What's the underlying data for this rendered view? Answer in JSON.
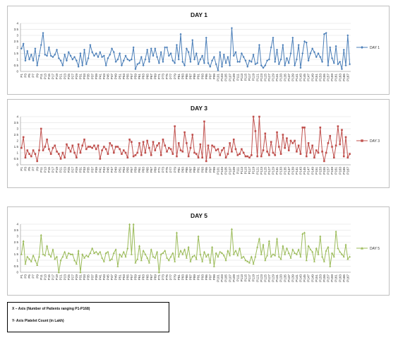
{
  "notes": {
    "x_axis": "X – Axis (Number of Patients ranging P1-P168)",
    "y_axis": "Y- Axis Platelet Count (in Lakh)"
  },
  "chart_data": [
    {
      "type": "line",
      "title": "DAY 1",
      "xlabel": "",
      "ylabel": "",
      "ylim": [
        0,
        4
      ],
      "yticks": [
        0,
        0.5,
        1,
        1.5,
        2,
        2.5,
        3,
        3.5,
        4
      ],
      "grid": true,
      "legend": "right",
      "color": "#4a7eb8",
      "marker": "diamond",
      "x_tick_every": 2,
      "n_points": 168,
      "series": [
        {
          "name": "DAY 1",
          "values": [
            1.9,
            2.3,
            0.9,
            1.7,
            1.0,
            1.4,
            0.9,
            1.9,
            0.5,
            1.3,
            2.2,
            3.2,
            1.4,
            1.3,
            2.0,
            1.3,
            1.2,
            1.4,
            1.8,
            1.1,
            0.9,
            0.5,
            1.4,
            0.9,
            1.6,
            1.3,
            1.0,
            1.2,
            0.9,
            0.4,
            1.5,
            0.5,
            1.8,
            0.6,
            1.1,
            2.2,
            1.6,
            1.3,
            1.5,
            1.2,
            1.6,
            1.2,
            1.3,
            0.5,
            1.1,
            1.4,
            1.9,
            1.6,
            0.8,
            1.0,
            1.5,
            0.5,
            0.9,
            1.3,
            1.0,
            0.9,
            1.0,
            2.0,
            0.2,
            0.6,
            0.7,
            1.2,
            0.5,
            1.0,
            1.8,
            0.8,
            1.9,
            1.3,
            1.9,
            1.2,
            0.7,
            1.6,
            0.8,
            2.0,
            2.0,
            1.3,
            1.5,
            0.9,
            0.7,
            2.2,
            1.0,
            3.1,
            0.8,
            0.5,
            1.9,
            1.6,
            0.8,
            2.6,
            1.0,
            1.5,
            0.6,
            1.0,
            1.3,
            0.7,
            2.8,
            0.7,
            0.4,
            0.9,
            1.2,
            0.6,
            0.1,
            1.6,
            0.4,
            1.4,
            0.7,
            1.2,
            0.5,
            3.6,
            1.3,
            1.6,
            0.8,
            0.8,
            1.5,
            1.2,
            0.9,
            0.4,
            0.9,
            0.8,
            1.4,
            0.6,
            0.7,
            2.2,
            0.5,
            0.3,
            0.5,
            0.9,
            1.0,
            2.0,
            2.8,
            0.8,
            1.8,
            0.6,
            1.0,
            2.2,
            0.5,
            1.1,
            0.7,
            1.5,
            2.8,
            0.5,
            1.0,
            2.2,
            0.3,
            1.5,
            2.5,
            2.4,
            0.9,
            1.5,
            1.9,
            1.6,
            1.2,
            1.5,
            1.2,
            0.8,
            3.1,
            3.2,
            0.5,
            2.0,
            1.1,
            0.7,
            2.1,
            0.6,
            0.8,
            0.2,
            1.8,
            0.5,
            3.0,
            0.6
          ],
          "values_tail": []
        }
      ]
    },
    {
      "type": "line",
      "title": "DAY 3",
      "xlabel": "",
      "ylabel": "",
      "ylim": [
        0,
        4
      ],
      "yticks": [
        0,
        0.5,
        1,
        1.5,
        2,
        2.5,
        3,
        3.5,
        4
      ],
      "grid": true,
      "legend": "right",
      "color": "#c0504d",
      "marker": "square",
      "x_tick_every": 2,
      "n_points": 168,
      "series": [
        {
          "name": "DAY 3",
          "values": [
            1.4,
            2.3,
            0.6,
            1.2,
            0.9,
            0.7,
            1.2,
            0.9,
            0.3,
            1.2,
            3.0,
            1.2,
            1.5,
            2.1,
            1.3,
            0.9,
            1.4,
            1.6,
            1.1,
            0.9,
            0.5,
            1.0,
            0.6,
            1.7,
            1.4,
            1.1,
            1.6,
            1.0,
            0.6,
            1.7,
            1.0,
            1.6,
            2.1,
            1.3,
            1.5,
            1.5,
            1.4,
            1.6,
            1.3,
            1.6,
            0.5,
            1.2,
            1.5,
            1.3,
            0.9,
            1.8,
            1.6,
            1.0,
            1.5,
            1.5,
            1.3,
            0.9,
            1.2,
            1.0,
            0.6,
            2.1,
            1.9,
            0.7,
            0.8,
            1.0,
            1.8,
            0.8,
            1.9,
            1.0,
            2.0,
            1.4,
            0.8,
            1.9,
            1.2,
            1.6,
            1.8,
            0.8,
            2.1,
            1.6,
            1.1,
            1.4,
            1.3,
            0.9,
            3.2,
            0.7,
            1.8,
            1.2,
            1.1,
            2.7,
            1.8,
            0.7,
            1.4,
            2.5,
            1.0,
            0.9,
            0.6,
            1.7,
            0.6,
            3.6,
            0.3,
            1.6,
            0.6,
            1.6,
            1.5,
            1.2,
            1.3,
            0.8,
            1.2,
            1.4,
            0.6,
            0.9,
            1.8,
            1.1,
            2.1,
            1.3,
            0.8,
            0.9,
            1.3,
            1.0,
            0.7,
            0.7,
            0.6,
            0.8,
            4.0,
            2.8,
            0.7,
            4.0,
            0.7,
            1.2,
            2.6,
            1.1,
            0.8,
            1.9,
            1.0,
            0.8,
            2.7,
            1.5,
            0.9,
            2.5,
            1.4,
            2.2,
            1.2,
            2.0,
            1.8,
            2.0,
            1.1,
            1.6,
            0.9,
            3.1,
            3.1,
            0.7,
            1.8,
            1.0,
            1.6,
            0.6,
            1.2,
            1.0,
            3.1,
            1.1,
            0.3,
            1.0,
            1.8,
            2.4,
            1.5,
            0.6,
            1.6,
            3.2,
            1.7,
            2.9,
            0.7,
            2.3,
            0.6,
            0.9
          ]
        }
      ]
    },
    {
      "type": "line",
      "title": "DAY 5",
      "xlabel": "",
      "ylabel": "",
      "ylim": [
        0,
        4
      ],
      "yticks": [
        0,
        0.5,
        1,
        1.5,
        2,
        2.5,
        3,
        3.5,
        4
      ],
      "grid": true,
      "legend": "right",
      "color": "#9bbb59",
      "marker": "triangle",
      "x_tick_every": 2,
      "n_points": 168,
      "series": [
        {
          "name": "DAY 5",
          "values": [
            1.5,
            2.6,
            0.7,
            1.3,
            1.1,
            0.9,
            1.4,
            1.0,
            0.6,
            1.3,
            3.1,
            1.5,
            1.4,
            2.2,
            1.5,
            1.3,
            1.9,
            1.1,
            1.3,
            0.0,
            1.0,
            1.3,
            1.7,
            1.2,
            1.6,
            1.5,
            1.5,
            1.0,
            0.7,
            1.8,
            0.0,
            1.5,
            1.2,
            1.4,
            1.3,
            1.6,
            2.0,
            1.6,
            1.7,
            1.5,
            1.7,
            1.2,
            0.9,
            1.6,
            1.7,
            1.0,
            1.1,
            1.6,
            1.9,
            0.5,
            1.5,
            1.3,
            1.7,
            1.3,
            2.0,
            4.0,
            1.5,
            4.0,
            0.8,
            1.1,
            2.2,
            1.0,
            1.8,
            1.5,
            1.2,
            0.8,
            1.9,
            1.3,
            1.2,
            1.7,
            0.0,
            1.5,
            1.6,
            1.8,
            1.2,
            1.0,
            1.3,
            1.6,
            0.9,
            3.3,
            1.3,
            1.8,
            1.5,
            1.9,
            1.2,
            2.1,
            0.9,
            1.3,
            1.4,
            1.1,
            3.0,
            1.5,
            0.9,
            1.7,
            1.3,
            1.5,
            0.8,
            2.1,
            0.5,
            1.6,
            1.3,
            1.7,
            1.6,
            1.4,
            1.0,
            1.8,
            1.4,
            3.6,
            1.5,
            1.8,
            1.4,
            2.0,
            1.2,
            1.3,
            1.0,
            0.9,
            0.8,
            1.3,
            0.7,
            1.3,
            2.1,
            2.8,
            1.5,
            2.3,
            1.0,
            1.4,
            2.6,
            1.3,
            1.5,
            1.4,
            2.8,
            1.3,
            1.1,
            2.2,
            1.5,
            2.0,
            1.6,
            1.2,
            1.9,
            1.6,
            1.5,
            1.9,
            1.3,
            3.2,
            3.3,
            1.0,
            2.2,
            1.9,
            1.7,
            0.9,
            2.0,
            1.5,
            3.0,
            1.3,
            0.9,
            1.8,
            2.1,
            0.5,
            1.6,
            1.3,
            3.4,
            2.0,
            1.7,
            1.5,
            1.3,
            2.3,
            1.1,
            1.3
          ]
        }
      ]
    }
  ]
}
